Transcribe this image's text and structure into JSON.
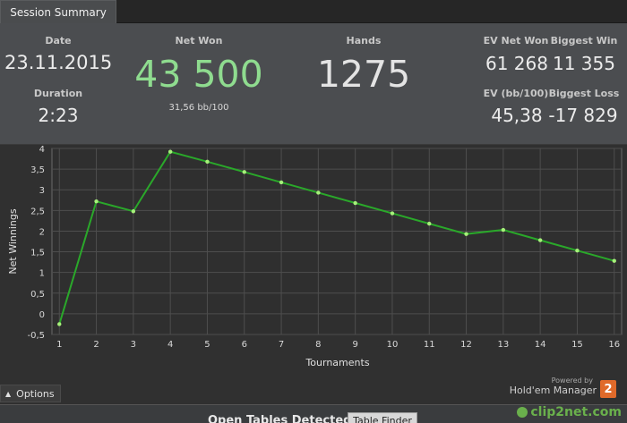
{
  "tabs": [
    {
      "label": "Session Summary"
    }
  ],
  "summary": {
    "date_label": "Date",
    "date_value": "23.11.2015",
    "duration_label": "Duration",
    "duration_value": "2:23",
    "net_won_label": "Net Won",
    "net_won_value": "43 500",
    "net_won_sub": "31,56 bb/100",
    "hands_label": "Hands",
    "hands_value": "1275",
    "ev_net_won_label": "EV Net Won",
    "ev_net_won_value": "61 268",
    "biggest_win_label": "Biggest Win",
    "biggest_win_value": "11 355",
    "ev_bb_label": "EV (bb/100)",
    "ev_bb_value": "45,38",
    "biggest_loss_label": "Biggest Loss",
    "biggest_loss_value": "-17 829"
  },
  "colors": {
    "net_won_green": "#8fdc8f",
    "line_green": "#2aa82a",
    "point_green": "#a6f07a"
  },
  "chart_data": {
    "type": "line",
    "xlabel": "Tournaments",
    "ylabel": "Net Winnings",
    "x": [
      1,
      2,
      3,
      4,
      5,
      6,
      7,
      8,
      9,
      10,
      11,
      12,
      13,
      14,
      15,
      16
    ],
    "series": [
      {
        "values": [
          -0.25,
          2.72,
          2.48,
          3.92,
          3.68,
          3.43,
          3.18,
          2.93,
          2.68,
          2.43,
          2.18,
          1.93,
          2.03,
          1.78,
          1.53,
          1.28
        ]
      }
    ],
    "xticks": [
      "1",
      "2",
      "3",
      "4",
      "5",
      "6",
      "7",
      "8",
      "9",
      "10",
      "11",
      "12",
      "13",
      "14",
      "15",
      "16"
    ],
    "yticks": [
      "-0,5",
      "0",
      "0,5",
      "1",
      "1,5",
      "2",
      "2,5",
      "3",
      "3,5",
      "4"
    ],
    "ylim": [
      -0.5,
      4
    ],
    "xlim": [
      1,
      16
    ],
    "grid": true
  },
  "footer": {
    "options_label": "Options",
    "options_icon": "chevron-up-icon",
    "powered_by": "Powered by",
    "hm_name": "Hold'em Manager",
    "hm_logo": "2",
    "open_tables": "Open Tables Detected",
    "table_finder": "Table Finder",
    "watermark": "clip2net.com"
  }
}
